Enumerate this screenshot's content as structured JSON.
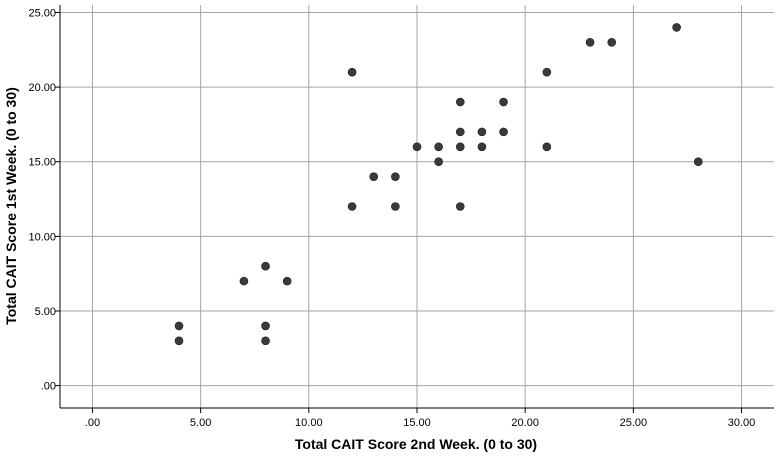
{
  "chart_data": {
    "type": "scatter",
    "title": "",
    "xlabel": "Total CAIT Score 2nd Week. (0 to 30)",
    "ylabel": "Total CAIT Score 1st Week. (0 to 30)",
    "xlim": [
      -1.5,
      31.5
    ],
    "ylim": [
      -1.5,
      25.5
    ],
    "x_ticks": [
      0,
      5,
      10,
      15,
      20,
      25,
      30
    ],
    "x_tick_labels": [
      ".00",
      "5.00",
      "10.00",
      "15.00",
      "20.00",
      "25.00",
      "30.00"
    ],
    "y_ticks": [
      0,
      5,
      10,
      15,
      20,
      25
    ],
    "y_tick_labels": [
      ".00",
      "5.00",
      "10.00",
      "15.00",
      "20.00",
      "25.00"
    ],
    "grid": true,
    "marker_color": "#3a3a3a",
    "grid_color": "#a6a6a6",
    "points": [
      {
        "x": 4,
        "y": 4
      },
      {
        "x": 4,
        "y": 3
      },
      {
        "x": 7,
        "y": 7
      },
      {
        "x": 8,
        "y": 8
      },
      {
        "x": 8,
        "y": 4
      },
      {
        "x": 8,
        "y": 3
      },
      {
        "x": 9,
        "y": 7
      },
      {
        "x": 12,
        "y": 21
      },
      {
        "x": 12,
        "y": 12
      },
      {
        "x": 13,
        "y": 14
      },
      {
        "x": 14,
        "y": 14
      },
      {
        "x": 14,
        "y": 12
      },
      {
        "x": 15,
        "y": 16
      },
      {
        "x": 16,
        "y": 16
      },
      {
        "x": 16,
        "y": 15
      },
      {
        "x": 17,
        "y": 19
      },
      {
        "x": 17,
        "y": 17
      },
      {
        "x": 17,
        "y": 16
      },
      {
        "x": 17,
        "y": 12
      },
      {
        "x": 18,
        "y": 17
      },
      {
        "x": 18,
        "y": 16
      },
      {
        "x": 19,
        "y": 19
      },
      {
        "x": 19,
        "y": 17
      },
      {
        "x": 21,
        "y": 21
      },
      {
        "x": 21,
        "y": 16
      },
      {
        "x": 23,
        "y": 23
      },
      {
        "x": 24,
        "y": 23
      },
      {
        "x": 27,
        "y": 24
      },
      {
        "x": 28,
        "y": 15
      }
    ]
  }
}
